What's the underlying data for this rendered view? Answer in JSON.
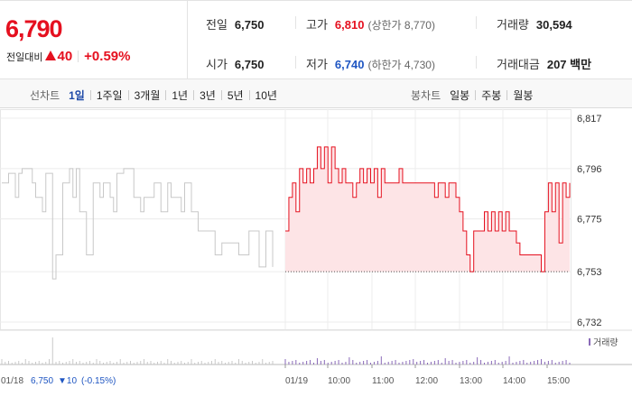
{
  "quote": {
    "price": "6,790",
    "change_label": "전일대비",
    "change_value": "40",
    "change_pct": "+0.59%",
    "direction": "up",
    "prev_close": {
      "label": "전일",
      "value": "6,750"
    },
    "high": {
      "label": "고가",
      "value": "6,810",
      "sub": "(상한가 8,770)"
    },
    "volume": {
      "label": "거래량",
      "value": "30,594"
    },
    "open": {
      "label": "시가",
      "value": "6,750"
    },
    "low": {
      "label": "저가",
      "value": "6,740",
      "sub": "(하한가 4,730)"
    },
    "amount": {
      "label": "거래대금",
      "value": "207 백만"
    }
  },
  "toolbar": {
    "line_title": "선차트",
    "line_periods": [
      "1일",
      "1주일",
      "3개월",
      "1년",
      "3년",
      "5년",
      "10년"
    ],
    "line_active": "1일",
    "candle_title": "봉차트",
    "candle_periods": [
      "일봉",
      "주봉",
      "월봉"
    ]
  },
  "chart_data": {
    "type": "line",
    "y_ticks": [
      "6,817",
      "6,796",
      "6,775",
      "6,753",
      "6,732"
    ],
    "ylim": [
      6732,
      6817
    ],
    "grid": true,
    "reference_line": 6753,
    "volume_legend": "거래량",
    "x_labels": [
      "01/18",
      "01/19",
      "10:00",
      "11:00",
      "12:00",
      "13:00",
      "14:00",
      "15:00"
    ],
    "prev_day_summary": {
      "date": "01/18",
      "close": "6,750",
      "change": "▼10",
      "change_pct": "(-0.15%)"
    },
    "series": [
      {
        "session": "previous",
        "color": "#c8c8c8",
        "x": [
          0,
          1,
          2,
          3,
          4,
          5,
          6,
          7,
          8,
          9,
          10,
          11,
          12,
          13,
          14,
          15,
          16,
          17,
          18,
          19,
          20,
          21,
          22,
          23,
          24,
          25,
          26,
          27,
          28,
          29,
          30,
          31,
          32,
          33,
          34,
          35,
          36,
          37,
          38,
          39,
          40,
          41,
          42,
          43,
          44,
          45,
          46,
          47,
          48,
          49,
          50,
          51,
          52,
          53,
          54,
          55,
          56,
          57,
          58,
          59,
          60,
          61,
          62,
          63,
          64,
          65,
          66,
          67,
          68,
          69,
          70,
          71,
          72,
          73,
          74,
          75,
          76,
          77,
          78,
          79,
          80
        ],
        "values": [
          6790,
          6790,
          6794,
          6794,
          6784,
          6794,
          6796,
          6796,
          6796,
          6790,
          6784,
          6784,
          6778,
          6794,
          6794,
          6750,
          6760,
          6760,
          6790,
          6790,
          6796,
          6784,
          6796,
          6778,
          6778,
          6760,
          6760,
          6790,
          6790,
          6784,
          6790,
          6790,
          6784,
          6778,
          6794,
          6794,
          6796,
          6796,
          6796,
          6784,
          6784,
          6778,
          6784,
          6784,
          6784,
          6790,
          6790,
          6778,
          6778,
          6790,
          6784,
          6784,
          6784,
          6778,
          6790,
          6790,
          6778,
          6778,
          6770,
          6770,
          6770,
          6770,
          6770,
          6760,
          6760,
          6765,
          6765,
          6765,
          6765,
          6765,
          6760,
          6760,
          6760,
          6770,
          6770,
          6770,
          6755,
          6755,
          6770,
          6770,
          6755
        ]
      },
      {
        "session": "today",
        "color": "#e5101f",
        "fill": "#fde4e6",
        "x": [
          0,
          1,
          2,
          3,
          4,
          5,
          6,
          7,
          8,
          9,
          10,
          11,
          12,
          13,
          14,
          15,
          16,
          17,
          18,
          19,
          20,
          21,
          22,
          23,
          24,
          25,
          26,
          27,
          28,
          29,
          30,
          31,
          32,
          33,
          34,
          35,
          36,
          37,
          38,
          39,
          40,
          41,
          42,
          43,
          44,
          45,
          46,
          47,
          48,
          49,
          50,
          51,
          52,
          53,
          54,
          55,
          56,
          57,
          58,
          59,
          60,
          61,
          62,
          63,
          64,
          65,
          66,
          67,
          68,
          69,
          70,
          71,
          72,
          73,
          74,
          75,
          76,
          77,
          78,
          79,
          80
        ],
        "values": [
          6770,
          6784,
          6790,
          6778,
          6796,
          6790,
          6796,
          6790,
          6796,
          6805,
          6796,
          6805,
          6790,
          6805,
          6796,
          6790,
          6796,
          6790,
          6790,
          6784,
          6790,
          6796,
          6790,
          6796,
          6790,
          6796,
          6784,
          6796,
          6790,
          6790,
          6790,
          6790,
          6796,
          6790,
          6790,
          6790,
          6790,
          6790,
          6790,
          6790,
          6790,
          6790,
          6784,
          6790,
          6790,
          6784,
          6790,
          6790,
          6784,
          6778,
          6770,
          6760,
          6753,
          6770,
          6770,
          6770,
          6778,
          6770,
          6778,
          6770,
          6778,
          6770,
          6778,
          6770,
          6770,
          6765,
          6760,
          6760,
          6760,
          6760,
          6760,
          6760,
          6753,
          6778,
          6790,
          6778,
          6790,
          6765,
          6790,
          6784,
          6790
        ]
      }
    ]
  }
}
